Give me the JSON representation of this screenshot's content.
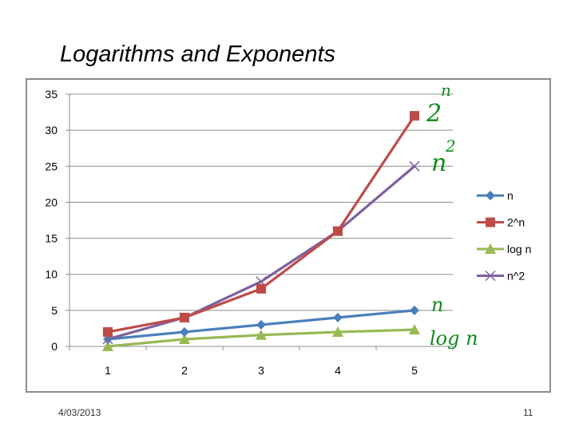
{
  "slide": {
    "title": "Logarithms and Exponents",
    "date": "4/03/2013",
    "page_number": "11"
  },
  "chart_data": {
    "type": "line",
    "title": "",
    "xlabel": "",
    "ylabel": "",
    "categories": [
      "1",
      "2",
      "3",
      "4",
      "5"
    ],
    "ylim": [
      0,
      35
    ],
    "yticks": [
      "0",
      "5",
      "10",
      "15",
      "20",
      "25",
      "30",
      "35"
    ],
    "grid": "horizontal",
    "legend_position": "right",
    "series": [
      {
        "name": "n",
        "values": [
          1,
          2,
          3,
          4,
          5
        ],
        "color": "#4a7ebb",
        "marker": "diamond"
      },
      {
        "name": "2^n",
        "values": [
          2,
          4,
          8,
          16,
          32
        ],
        "color": "#be4b48",
        "marker": "square"
      },
      {
        "name": "log n",
        "values": [
          0,
          1,
          1.58,
          2,
          2.32
        ],
        "color": "#98b954",
        "marker": "triangle"
      },
      {
        "name": "n^2",
        "values": [
          1,
          4,
          9,
          16,
          25
        ],
        "color": "#7d60a0",
        "marker": "x"
      }
    ],
    "handwritten_annotations": [
      {
        "text": "2^n",
        "near_series": "2^n",
        "color": "#108a1e"
      },
      {
        "text": "n^2",
        "near_series": "n^2",
        "color": "#108a1e"
      },
      {
        "text": "n",
        "near_series": "n",
        "color": "#108a1e"
      },
      {
        "text": "log n",
        "near_series": "log n",
        "color": "#108a1e"
      }
    ]
  }
}
